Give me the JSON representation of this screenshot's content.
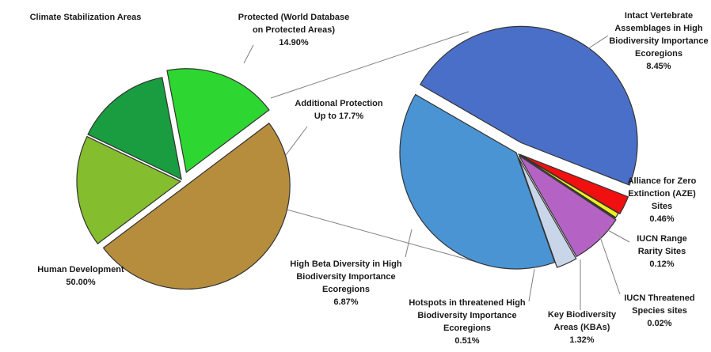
{
  "chart_data": [
    {
      "type": "pie",
      "slices": [
        {
          "label_lines": [
            "Human Development",
            "50.00%"
          ],
          "value": 50.0,
          "color": "#b58d3d"
        },
        {
          "label_lines": [
            "Climate Stabilization Areas"
          ],
          "value": 17.4,
          "color": "#84bd2e"
        },
        {
          "label_lines": [
            "Protected (World Database",
            "on Protected Areas)",
            "14.90%"
          ],
          "value": 14.9,
          "color": "#1a9c40"
        },
        {
          "label_lines": [
            "Additional Protection",
            "Up to 17.7%"
          ],
          "value": 17.7,
          "color": "#2ed632"
        }
      ]
    },
    {
      "type": "pie",
      "slices": [
        {
          "label_lines": [
            "Intact Vertebrate",
            "Assemblages in High",
            "Biodiversity Importance",
            "Ecoregions",
            "8.45%"
          ],
          "value": 8.45,
          "color": "#4a6fc9"
        },
        {
          "label_lines": [
            "Alliance for Zero",
            "Extinction (AZE)",
            "Sites",
            "0.46%"
          ],
          "value": 0.46,
          "color": "#f01010"
        },
        {
          "label_lines": [
            "IUCN Range",
            "Rarity Sites",
            "0.12%"
          ],
          "value": 0.12,
          "color": "#f0f020"
        },
        {
          "label_lines": [
            "IUCN Threatened",
            "Species sites",
            "0.02%"
          ],
          "value": 0.02,
          "color": "#2a7a2a"
        },
        {
          "label_lines": [
            "Key Biodiversity",
            "Areas (KBAs)",
            "1.32%"
          ],
          "value": 1.32,
          "color": "#b463c4"
        },
        {
          "label_lines": [
            "Hotspots in threatened High",
            "Biodiversity Importance",
            "Ecoregions",
            "0.51%"
          ],
          "value": 0.51,
          "color": "#c9d6ea"
        },
        {
          "label_lines": [
            "High Beta Diversity in High",
            "Biodiversity Importance",
            "Ecoregions",
            "6.87%"
          ],
          "value": 6.87,
          "color": "#4a94d4"
        }
      ]
    }
  ]
}
